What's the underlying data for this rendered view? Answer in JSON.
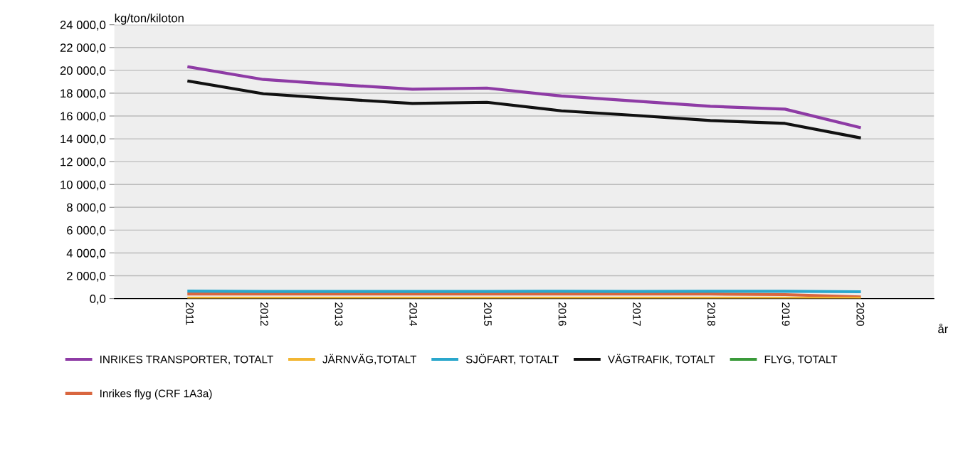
{
  "chart_data": {
    "type": "line",
    "ylabel": "kg/ton/kiloton",
    "xlabel": "år",
    "categories": [
      "2011",
      "2012",
      "2013",
      "2014",
      "2015",
      "2016",
      "2017",
      "2018",
      "2019",
      "2020"
    ],
    "series": [
      {
        "name": "INRIKES TRANSPORTER, TOTALT",
        "color": "#8e3ba5",
        "values": [
          20300,
          19200,
          18750,
          18350,
          18450,
          17750,
          17300,
          16850,
          16600,
          15000
        ]
      },
      {
        "name": "Inrikes flyg (CRF 1A3a)",
        "color": "#d9663f",
        "values": [
          400,
          400,
          400,
          400,
          400,
          400,
          400,
          400,
          350,
          150
        ]
      },
      {
        "name": "JÄRNVÄG,TOTALT",
        "color": "#f2b632",
        "values": [
          30,
          30,
          30,
          30,
          30,
          30,
          30,
          30,
          30,
          30
        ]
      },
      {
        "name": "SJÖFART, TOTALT",
        "color": "#2aa7cc",
        "values": [
          650,
          620,
          620,
          620,
          620,
          640,
          620,
          640,
          640,
          600
        ]
      },
      {
        "name": "VÄGTRAFIK, TOTALT",
        "color": "#111111",
        "values": [
          19050,
          17950,
          17500,
          17100,
          17200,
          16450,
          16050,
          15600,
          15350,
          14100
        ]
      },
      {
        "name": "FLYG, TOTALT",
        "color": "#3a9a3a",
        "values": [
          null,
          null,
          null,
          null,
          null,
          null,
          null,
          null,
          null,
          null
        ]
      }
    ],
    "ylim": [
      0,
      24000
    ],
    "yticks": [
      {
        "value": 0,
        "label": "0,0"
      },
      {
        "value": 2000,
        "label": "2 000,0"
      },
      {
        "value": 4000,
        "label": "4 000,0"
      },
      {
        "value": 6000,
        "label": "6 000,0"
      },
      {
        "value": 8000,
        "label": "8 000,0"
      },
      {
        "value": 10000,
        "label": "10 000,0"
      },
      {
        "value": 12000,
        "label": "12 000,0"
      },
      {
        "value": 14000,
        "label": "14 000,0"
      },
      {
        "value": 16000,
        "label": "16 000,0"
      },
      {
        "value": 18000,
        "label": "18 000,0"
      },
      {
        "value": 20000,
        "label": "20 000,0"
      },
      {
        "value": 22000,
        "label": "22 000,0"
      },
      {
        "value": 24000,
        "label": "24 000,0"
      }
    ],
    "grid": "y",
    "legend": "bottom",
    "marker": "none",
    "line_style": "solid"
  }
}
